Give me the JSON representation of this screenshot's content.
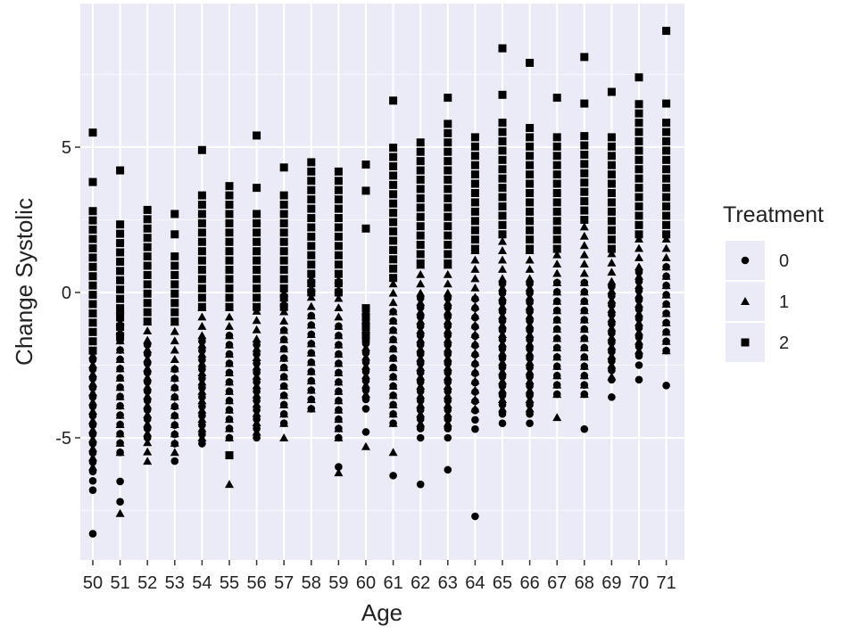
{
  "chart_data": {
    "type": "scatter",
    "xlabel": "Age",
    "ylabel": "Change Systolic",
    "x_categories": [
      "50",
      "51",
      "52",
      "53",
      "54",
      "55",
      "56",
      "57",
      "58",
      "59",
      "60",
      "61",
      "62",
      "63",
      "64",
      "65",
      "66",
      "67",
      "68",
      "69",
      "70",
      "71"
    ],
    "ylim": [
      -9,
      9
    ],
    "y_ticks": [
      {
        "value": 5,
        "label": "5"
      },
      {
        "value": 0,
        "label": "0"
      },
      {
        "value": -5,
        "label": "-5"
      }
    ],
    "grid": true,
    "panel_background": "#ebebf7",
    "legend": {
      "title": "Treatment",
      "position": "right",
      "entries": [
        {
          "label": "0",
          "shape": "circle"
        },
        {
          "label": "1",
          "shape": "triangle"
        },
        {
          "label": "2",
          "shape": "square"
        }
      ]
    },
    "series": [
      {
        "name": "0",
        "shape": "circle",
        "ranges": [
          {
            "x": "50",
            "min": -6.8,
            "max": -2.0,
            "outliers": [
              -8.3
            ]
          },
          {
            "x": "51",
            "min": -5.5,
            "max": -1.5,
            "outliers": [
              -6.5,
              -7.2
            ]
          },
          {
            "x": "52",
            "min": -5.0,
            "max": -1.5,
            "outliers": []
          },
          {
            "x": "53",
            "min": -5.2,
            "max": -2.5,
            "outliers": [
              -5.8
            ]
          },
          {
            "x": "54",
            "min": -5.2,
            "max": -1.5,
            "outliers": []
          },
          {
            "x": "55",
            "min": -5.0,
            "max": -1.2,
            "outliers": []
          },
          {
            "x": "56",
            "min": -5.0,
            "max": -1.5,
            "outliers": []
          },
          {
            "x": "57",
            "min": -4.5,
            "max": -1.0,
            "outliers": []
          },
          {
            "x": "58",
            "min": -4.0,
            "max": -0.5,
            "outliers": []
          },
          {
            "x": "59",
            "min": -5.0,
            "max": -1.0,
            "outliers": [
              -6.0
            ]
          },
          {
            "x": "60",
            "min": -4.0,
            "max": -1.5,
            "outliers": [
              -4.8
            ]
          },
          {
            "x": "61",
            "min": -4.5,
            "max": -0.5,
            "outliers": [
              -6.3
            ]
          },
          {
            "x": "62",
            "min": -5.0,
            "max": 0.0,
            "outliers": [
              -6.6
            ]
          },
          {
            "x": "63",
            "min": -5.0,
            "max": 0.0,
            "outliers": [
              -6.1
            ]
          },
          {
            "x": "64",
            "min": -4.7,
            "max": 0.0,
            "outliers": [
              -7.7
            ]
          },
          {
            "x": "65",
            "min": -4.5,
            "max": 0.5,
            "outliers": []
          },
          {
            "x": "66",
            "min": -4.5,
            "max": 0.5,
            "outliers": []
          },
          {
            "x": "67",
            "min": -3.5,
            "max": 0.5,
            "outliers": []
          },
          {
            "x": "68",
            "min": -3.5,
            "max": 0.5,
            "outliers": [
              -4.7
            ]
          },
          {
            "x": "69",
            "min": -3.0,
            "max": 0.5,
            "outliers": [
              -3.6
            ]
          },
          {
            "x": "70",
            "min": -2.5,
            "max": 1.0,
            "outliers": [
              -3.0
            ]
          },
          {
            "x": "71",
            "min": -2.0,
            "max": 1.0,
            "outliers": [
              -3.2
            ]
          }
        ]
      },
      {
        "name": "1",
        "shape": "triangle",
        "ranges": [
          {
            "x": "50",
            "min": -6.0,
            "max": -2.0,
            "outliers": []
          },
          {
            "x": "51",
            "min": -5.5,
            "max": -1.0,
            "outliers": [
              -0.6,
              -7.6
            ]
          },
          {
            "x": "52",
            "min": -5.8,
            "max": -1.0,
            "outliers": []
          },
          {
            "x": "53",
            "min": -5.5,
            "max": -1.0,
            "outliers": []
          },
          {
            "x": "54",
            "min": -5.0,
            "max": -0.5,
            "outliers": []
          },
          {
            "x": "55",
            "min": -5.0,
            "max": -0.5,
            "outliers": [
              -6.6
            ]
          },
          {
            "x": "56",
            "min": -4.8,
            "max": -0.5,
            "outliers": []
          },
          {
            "x": "57",
            "min": -4.5,
            "max": 0.0,
            "outliers": [
              -5.0
            ]
          },
          {
            "x": "58",
            "min": -4.0,
            "max": 0.5,
            "outliers": []
          },
          {
            "x": "59",
            "min": -5.0,
            "max": 0.5,
            "outliers": [
              -6.2
            ]
          },
          {
            "x": "60",
            "min": -3.5,
            "max": -0.5,
            "outliers": [
              -5.3
            ]
          },
          {
            "x": "61",
            "min": -4.5,
            "max": 0.5,
            "outliers": [
              -5.5
            ]
          },
          {
            "x": "62",
            "min": -4.5,
            "max": 1.0,
            "outliers": []
          },
          {
            "x": "63",
            "min": -4.5,
            "max": 1.0,
            "outliers": []
          },
          {
            "x": "64",
            "min": -4.0,
            "max": 1.5,
            "outliers": []
          },
          {
            "x": "65",
            "min": -4.0,
            "max": 2.0,
            "outliers": []
          },
          {
            "x": "66",
            "min": -4.0,
            "max": 1.5,
            "outliers": []
          },
          {
            "x": "67",
            "min": -3.5,
            "max": 1.5,
            "outliers": [
              -4.3
            ]
          },
          {
            "x": "68",
            "min": -3.5,
            "max": 2.5,
            "outliers": []
          },
          {
            "x": "69",
            "min": -2.5,
            "max": 1.5,
            "outliers": [
              -2.9
            ]
          },
          {
            "x": "70",
            "min": -2.0,
            "max": 2.0,
            "outliers": []
          },
          {
            "x": "71",
            "min": -2.0,
            "max": 2.0,
            "outliers": []
          }
        ]
      },
      {
        "name": "2",
        "shape": "square",
        "ranges": [
          {
            "x": "50",
            "min": -2.0,
            "max": 2.8,
            "outliers": [
              3.8,
              5.5
            ]
          },
          {
            "x": "51",
            "min": -1.5,
            "max": 2.5,
            "outliers": [
              4.2
            ]
          },
          {
            "x": "52",
            "min": -1.0,
            "max": 3.0,
            "outliers": []
          },
          {
            "x": "53",
            "min": -1.0,
            "max": 1.5,
            "outliers": [
              2.0,
              2.7
            ]
          },
          {
            "x": "54",
            "min": -0.5,
            "max": 3.5,
            "outliers": [
              4.9
            ]
          },
          {
            "x": "55",
            "min": -0.5,
            "max": 3.8,
            "outliers": [
              -5.6
            ]
          },
          {
            "x": "56",
            "min": -0.5,
            "max": 3.0,
            "outliers": [
              3.6,
              5.4
            ]
          },
          {
            "x": "57",
            "min": -0.5,
            "max": 3.5,
            "outliers": [
              4.3
            ]
          },
          {
            "x": "58",
            "min": 0.0,
            "max": 4.5,
            "outliers": []
          },
          {
            "x": "59",
            "min": 0.0,
            "max": 4.3,
            "outliers": []
          },
          {
            "x": "60",
            "min": -1.5,
            "max": -0.5,
            "outliers": [
              2.2,
              3.5,
              4.4
            ]
          },
          {
            "x": "61",
            "min": 0.5,
            "max": 5.0,
            "outliers": [
              6.6
            ]
          },
          {
            "x": "62",
            "min": 1.0,
            "max": 5.2,
            "outliers": []
          },
          {
            "x": "63",
            "min": 1.0,
            "max": 6.0,
            "outliers": [
              6.7
            ]
          },
          {
            "x": "64",
            "min": 1.5,
            "max": 5.4,
            "outliers": []
          },
          {
            "x": "65",
            "min": 2.0,
            "max": 6.0,
            "outliers": [
              6.8,
              8.4
            ]
          },
          {
            "x": "66",
            "min": 1.5,
            "max": 5.8,
            "outliers": [
              7.9
            ]
          },
          {
            "x": "67",
            "min": 1.5,
            "max": 5.5,
            "outliers": [
              6.7
            ]
          },
          {
            "x": "68",
            "min": 2.5,
            "max": 5.5,
            "outliers": [
              6.5,
              8.1
            ]
          },
          {
            "x": "69",
            "min": 1.5,
            "max": 5.5,
            "outliers": [
              6.9
            ]
          },
          {
            "x": "70",
            "min": 2.0,
            "max": 6.5,
            "outliers": [
              7.4
            ]
          },
          {
            "x": "71",
            "min": 2.0,
            "max": 6.0,
            "outliers": [
              6.5,
              9.0
            ]
          }
        ]
      }
    ]
  }
}
